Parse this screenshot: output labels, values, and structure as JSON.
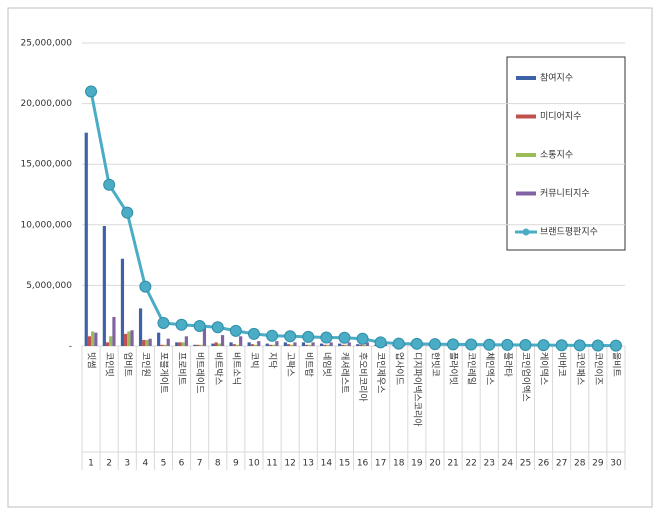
{
  "chart_data": {
    "type": "bar",
    "categories": [
      "빗썸",
      "코인빗",
      "업비트",
      "코인원",
      "포블게이트",
      "프로비트",
      "비트레이드",
      "비트박스",
      "비트소닉",
      "코빅",
      "지닥",
      "고팍스",
      "비트탑",
      "네임빗",
      "캐셔레스트",
      "후오비코리아",
      "코인제우스",
      "업사이드",
      "디지파이넥스코리아",
      "한빗코",
      "플라이빗",
      "코인레일",
      "체인엑스",
      "플라타",
      "코인업이엑스",
      "케이덱스",
      "비바코",
      "코인패스",
      "코인이즈",
      "올비트"
    ],
    "ranks": [
      1,
      2,
      3,
      4,
      5,
      6,
      7,
      8,
      9,
      10,
      11,
      12,
      13,
      14,
      15,
      16,
      17,
      18,
      19,
      20,
      21,
      22,
      23,
      24,
      25,
      26,
      27,
      28,
      29,
      30
    ],
    "series": [
      {
        "name": "참여지수",
        "color": "#3d62a8",
        "values": [
          17600000,
          9900000,
          7200000,
          3100000,
          1100000,
          300000,
          100000,
          200000,
          300000,
          300000,
          200000,
          300000,
          300000,
          200000,
          200000,
          150000,
          100000,
          80000,
          60000,
          50000,
          50000,
          40000,
          40000,
          30000,
          30000,
          30000,
          20000,
          20000,
          20000,
          10000
        ]
      },
      {
        "name": "미디어지수",
        "color": "#c0504d",
        "values": [
          800000,
          300000,
          1000000,
          500000,
          100000,
          300000,
          100000,
          300000,
          150000,
          150000,
          100000,
          150000,
          100000,
          100000,
          100000,
          100000,
          50000,
          30000,
          30000,
          20000,
          20000,
          20000,
          20000,
          20000,
          10000,
          10000,
          10000,
          10000,
          10000,
          10000
        ]
      },
      {
        "name": "소통지수",
        "color": "#9bbb59",
        "values": [
          1200000,
          800000,
          1200000,
          500000,
          100000,
          300000,
          100000,
          200000,
          100000,
          100000,
          100000,
          100000,
          100000,
          100000,
          100000,
          100000,
          50000,
          30000,
          30000,
          20000,
          20000,
          20000,
          20000,
          10000,
          10000,
          10000,
          10000,
          10000,
          10000,
          10000
        ]
      },
      {
        "name": "커뮤니티지수",
        "color": "#8064a2",
        "values": [
          1100000,
          2400000,
          1300000,
          600000,
          600000,
          800000,
          1600000,
          900000,
          800000,
          400000,
          400000,
          300000,
          300000,
          300000,
          300000,
          300000,
          150000,
          100000,
          80000,
          80000,
          60000,
          60000,
          50000,
          40000,
          40000,
          30000,
          30000,
          20000,
          20000,
          10000
        ]
      },
      {
        "name": "브랜드평판지수",
        "color": "#4bacc6",
        "type": "line",
        "values": [
          21000000,
          13300000,
          11000000,
          4900000,
          1900000,
          1750000,
          1650000,
          1550000,
          1250000,
          1000000,
          850000,
          800000,
          750000,
          700000,
          680000,
          600000,
          300000,
          200000,
          180000,
          150000,
          130000,
          120000,
          100000,
          90000,
          80000,
          70000,
          60000,
          50000,
          40000,
          30000
        ]
      }
    ],
    "ylim": [
      0,
      25000000
    ],
    "yticks": [
      {
        "value": 0,
        "label": "-"
      },
      {
        "value": 5000000,
        "label": "5,000,000"
      },
      {
        "value": 10000000,
        "label": "10,000,000"
      },
      {
        "value": 15000000,
        "label": "15,000,000"
      },
      {
        "value": 20000000,
        "label": "20,000,000"
      },
      {
        "value": 25000000,
        "label": "25,000,000"
      }
    ],
    "grid": true,
    "legend": "right"
  }
}
